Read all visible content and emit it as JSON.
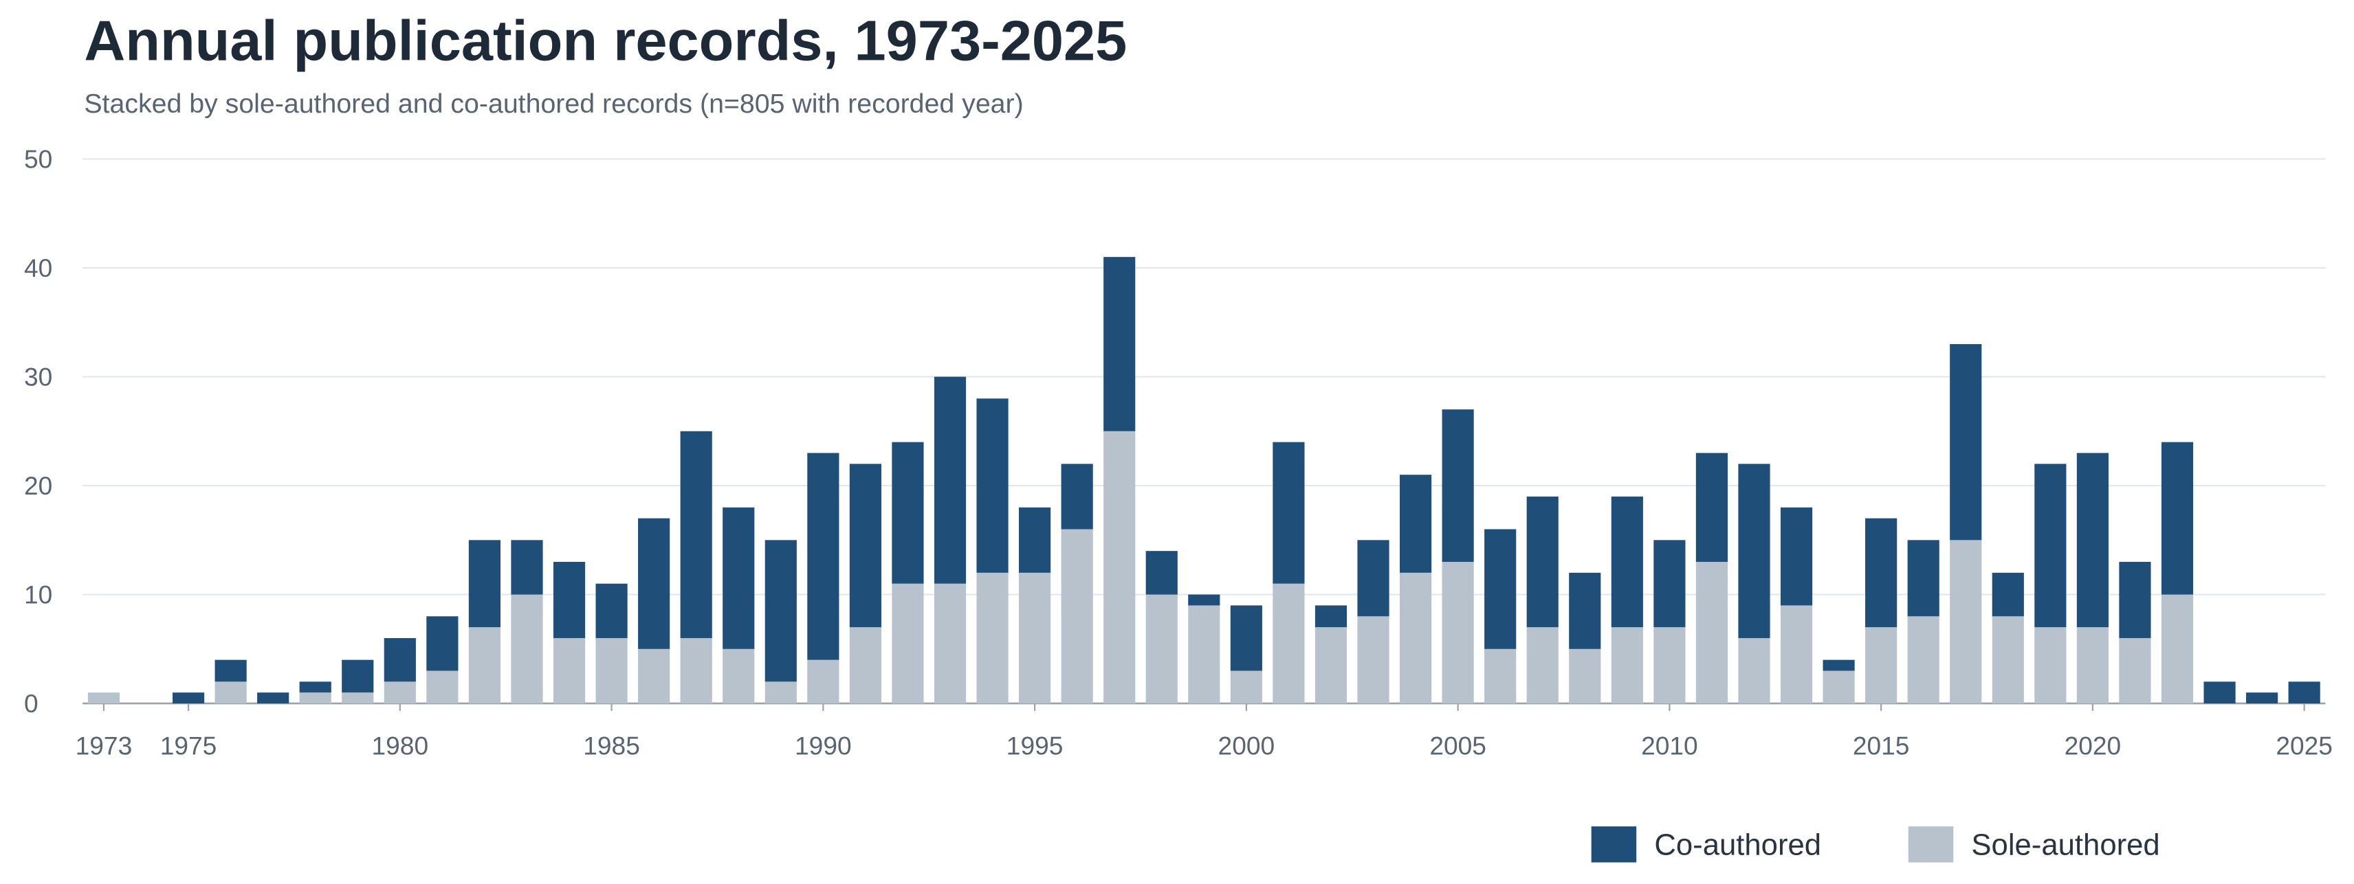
{
  "chart_data": {
    "type": "stacked-bar",
    "title": "Annual publication records, 1973-2025",
    "subtitle": "Stacked by sole-authored and co-authored records (n=805 with recorded year)",
    "x": [
      1973,
      1974,
      1975,
      1976,
      1977,
      1978,
      1979,
      1980,
      1981,
      1982,
      1983,
      1984,
      1985,
      1986,
      1987,
      1988,
      1989,
      1990,
      1991,
      1992,
      1993,
      1994,
      1995,
      1996,
      1997,
      1998,
      1999,
      2000,
      2001,
      2002,
      2003,
      2004,
      2005,
      2006,
      2007,
      2008,
      2009,
      2010,
      2011,
      2012,
      2013,
      2014,
      2015,
      2016,
      2017,
      2018,
      2019,
      2020,
      2021,
      2022,
      2023,
      2024,
      2025
    ],
    "series": [
      {
        "name": "Sole-authored",
        "color": "#b8c2cc",
        "values": [
          1,
          0,
          0,
          2,
          0,
          1,
          1,
          2,
          3,
          7,
          10,
          6,
          6,
          5,
          6,
          5,
          2,
          4,
          7,
          11,
          11,
          12,
          12,
          16,
          25,
          10,
          9,
          3,
          11,
          7,
          8,
          12,
          13,
          5,
          7,
          5,
          7,
          7,
          13,
          6,
          9,
          3,
          7,
          8,
          15,
          8,
          7,
          7,
          6,
          10,
          0,
          0,
          0
        ]
      },
      {
        "name": "Co-authored",
        "color": "#1f4e79",
        "values": [
          0,
          0,
          1,
          2,
          1,
          1,
          3,
          4,
          5,
          8,
          5,
          7,
          5,
          12,
          19,
          13,
          13,
          19,
          15,
          13,
          19,
          16,
          6,
          6,
          16,
          4,
          1,
          6,
          13,
          2,
          7,
          9,
          14,
          11,
          12,
          7,
          12,
          8,
          10,
          16,
          9,
          1,
          10,
          7,
          18,
          4,
          15,
          16,
          7,
          14,
          2,
          1,
          2
        ]
      }
    ],
    "xlim": [
      1972.5,
      2025.5
    ],
    "xticks": [
      1973,
      1975,
      1980,
      1985,
      1990,
      1995,
      2000,
      2005,
      2010,
      2015,
      2020,
      2025
    ],
    "ylim": [
      0,
      50
    ],
    "yticks": [
      0,
      10,
      20,
      30,
      40,
      50
    ],
    "grid": true,
    "legend": "bottom-right"
  }
}
